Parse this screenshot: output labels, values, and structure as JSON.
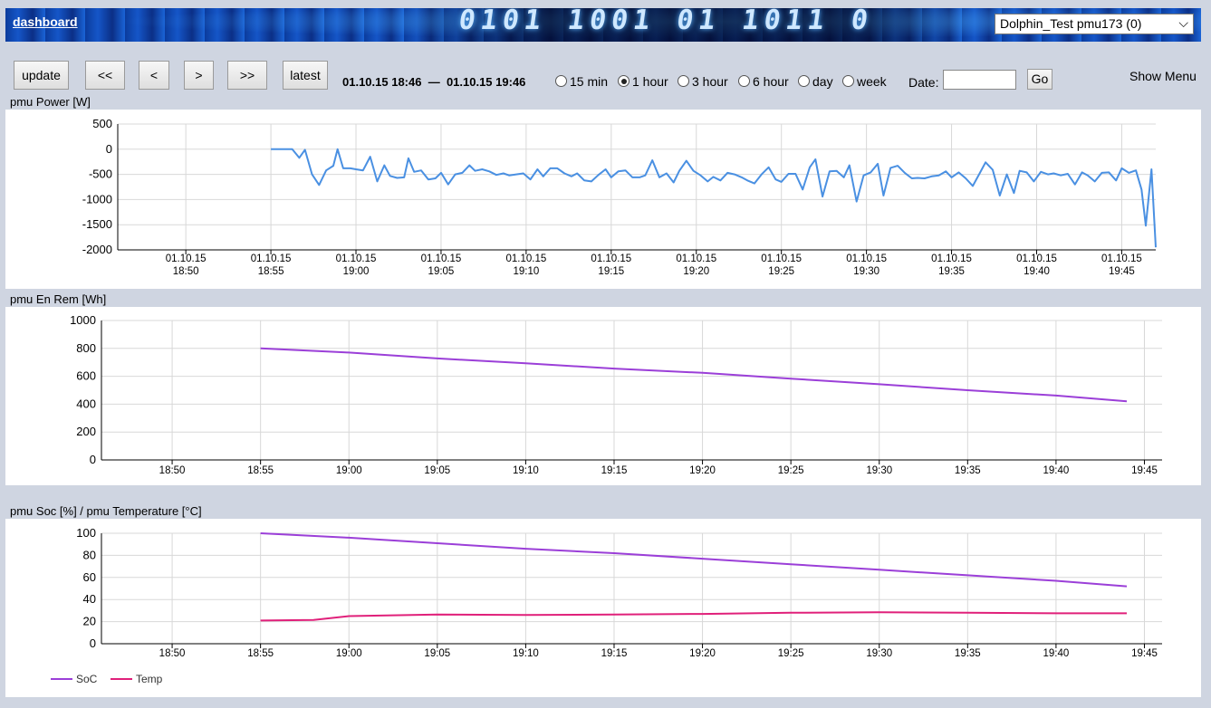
{
  "header": {
    "dashboard_link": "dashboard",
    "banner_digits": "0101 1001 01 1011 0",
    "device_select": "Dolphin_Test pmu173 (0)"
  },
  "toolbar": {
    "update": "update",
    "first": "<<",
    "prev": "<",
    "next": ">",
    "last": ">>",
    "latest": "latest",
    "range_start": "01.10.15 18:46",
    "range_sep": "—",
    "range_end": "01.10.15 19:46",
    "ranges": [
      {
        "label": "15 min",
        "selected": false
      },
      {
        "label": "1 hour",
        "selected": true
      },
      {
        "label": "3 hour",
        "selected": false
      },
      {
        "label": "6 hour",
        "selected": false
      },
      {
        "label": "day",
        "selected": false
      },
      {
        "label": "week",
        "selected": false
      }
    ],
    "date_label": "Date:",
    "date_value": "",
    "go": "Go",
    "show_menu": "Show Menu"
  },
  "chart_data": [
    {
      "type": "line",
      "title": "pmu Power [W]",
      "x_ticks": [
        [
          "01.10.15",
          "18:50"
        ],
        [
          "01.10.15",
          "18:55"
        ],
        [
          "01.10.15",
          "19:00"
        ],
        [
          "01.10.15",
          "19:05"
        ],
        [
          "01.10.15",
          "19:10"
        ],
        [
          "01.10.15",
          "19:15"
        ],
        [
          "01.10.15",
          "19:20"
        ],
        [
          "01.10.15",
          "19:25"
        ],
        [
          "01.10.15",
          "19:30"
        ],
        [
          "01.10.15",
          "19:35"
        ],
        [
          "01.10.15",
          "19:40"
        ],
        [
          "01.10.15",
          "19:45"
        ]
      ],
      "xlim": [
        "18:46",
        "19:47"
      ],
      "ylim": [
        -2000,
        500
      ],
      "y_ticks": [
        500,
        0,
        -500,
        -1000,
        -1500,
        -2000
      ],
      "grid": true,
      "series": [
        {
          "color": "#4a90e2",
          "points": [
            [
              "18:55",
              0
            ],
            [
              "18:55:45",
              0
            ],
            [
              "18:56:15",
              0
            ],
            [
              "18:56:40",
              -170
            ],
            [
              "18:57",
              -10
            ],
            [
              "18:57:25",
              -500
            ],
            [
              "18:57:50",
              -710
            ],
            [
              "18:58:15",
              -420
            ],
            [
              "18:58:40",
              -330
            ],
            [
              "18:58:55",
              0
            ],
            [
              "18:59:15",
              -380
            ],
            [
              "18:59:40",
              -380
            ],
            [
              "19:00",
              -400
            ],
            [
              "19:00:25",
              -420
            ],
            [
              "19:00:50",
              -150
            ],
            [
              "19:01:15",
              -640
            ],
            [
              "19:01:40",
              -320
            ],
            [
              "19:02",
              -530
            ],
            [
              "19:02:25",
              -570
            ],
            [
              "19:02:50",
              -560
            ],
            [
              "19:03:05",
              -180
            ],
            [
              "19:03:25",
              -450
            ],
            [
              "19:03:50",
              -420
            ],
            [
              "19:04:15",
              -600
            ],
            [
              "19:04:40",
              -580
            ],
            [
              "19:05",
              -470
            ],
            [
              "19:05:25",
              -700
            ],
            [
              "19:05:50",
              -500
            ],
            [
              "19:06:15",
              -470
            ],
            [
              "19:06:40",
              -320
            ],
            [
              "19:07",
              -430
            ],
            [
              "19:07:25",
              -400
            ],
            [
              "19:07:50",
              -440
            ],
            [
              "19:08:15",
              -510
            ],
            [
              "19:08:40",
              -480
            ],
            [
              "19:09",
              -520
            ],
            [
              "19:09:25",
              -500
            ],
            [
              "19:09:50",
              -480
            ],
            [
              "19:10:15",
              -600
            ],
            [
              "19:10:40",
              -400
            ],
            [
              "19:11",
              -540
            ],
            [
              "19:11:25",
              -380
            ],
            [
              "19:11:50",
              -380
            ],
            [
              "19:12:15",
              -480
            ],
            [
              "19:12:40",
              -540
            ],
            [
              "19:13",
              -480
            ],
            [
              "19:13:25",
              -620
            ],
            [
              "19:13:50",
              -640
            ],
            [
              "19:14:15",
              -510
            ],
            [
              "19:14:40",
              -400
            ],
            [
              "19:15",
              -560
            ],
            [
              "19:15:25",
              -440
            ],
            [
              "19:15:50",
              -420
            ],
            [
              "19:16:15",
              -560
            ],
            [
              "19:16:40",
              -560
            ],
            [
              "19:17",
              -520
            ],
            [
              "19:17:25",
              -220
            ],
            [
              "19:17:50",
              -560
            ],
            [
              "19:18:15",
              -480
            ],
            [
              "19:18:40",
              -660
            ],
            [
              "19:19",
              -430
            ],
            [
              "19:19:25",
              -230
            ],
            [
              "19:19:50",
              -430
            ],
            [
              "19:20:15",
              -520
            ],
            [
              "19:20:40",
              -640
            ],
            [
              "19:21",
              -550
            ],
            [
              "19:21:25",
              -620
            ],
            [
              "19:21:50",
              -470
            ],
            [
              "19:22:15",
              -500
            ],
            [
              "19:22:40",
              -560
            ],
            [
              "19:23",
              -620
            ],
            [
              "19:23:25",
              -680
            ],
            [
              "19:23:50",
              -500
            ],
            [
              "19:24:15",
              -360
            ],
            [
              "19:24:40",
              -600
            ],
            [
              "19:25",
              -650
            ],
            [
              "19:25:25",
              -490
            ],
            [
              "19:25:50",
              -490
            ],
            [
              "19:26:15",
              -800
            ],
            [
              "19:26:40",
              -360
            ],
            [
              "19:27",
              -200
            ],
            [
              "19:27:25",
              -940
            ],
            [
              "19:27:50",
              -440
            ],
            [
              "19:28:15",
              -430
            ],
            [
              "19:28:40",
              -560
            ],
            [
              "19:29",
              -320
            ],
            [
              "19:29:25",
              -1040
            ],
            [
              "19:29:50",
              -520
            ],
            [
              "19:30:15",
              -460
            ],
            [
              "19:30:40",
              -290
            ],
            [
              "19:31",
              -920
            ],
            [
              "19:31:25",
              -370
            ],
            [
              "19:31:50",
              -330
            ],
            [
              "19:32:15",
              -470
            ],
            [
              "19:32:40",
              -580
            ],
            [
              "19:33",
              -570
            ],
            [
              "19:33:25",
              -580
            ],
            [
              "19:33:50",
              -540
            ],
            [
              "19:34:15",
              -520
            ],
            [
              "19:34:40",
              -440
            ],
            [
              "19:35",
              -560
            ],
            [
              "19:35:25",
              -460
            ],
            [
              "19:35:50",
              -580
            ],
            [
              "19:36:15",
              -730
            ],
            [
              "19:36:40",
              -470
            ],
            [
              "19:37",
              -260
            ],
            [
              "19:37:25",
              -410
            ],
            [
              "19:37:50",
              -920
            ],
            [
              "19:38:15",
              -500
            ],
            [
              "19:38:40",
              -870
            ],
            [
              "19:39",
              -430
            ],
            [
              "19:39:25",
              -460
            ],
            [
              "19:39:50",
              -640
            ],
            [
              "19:40:15",
              -450
            ],
            [
              "19:40:40",
              -500
            ],
            [
              "19:41",
              -480
            ],
            [
              "19:41:25",
              -520
            ],
            [
              "19:41:50",
              -490
            ],
            [
              "19:42:15",
              -700
            ],
            [
              "19:42:40",
              -460
            ],
            [
              "19:43",
              -520
            ],
            [
              "19:43:25",
              -640
            ],
            [
              "19:43:50",
              -470
            ],
            [
              "19:44:15",
              -460
            ],
            [
              "19:44:40",
              -620
            ],
            [
              "19:45",
              -380
            ],
            [
              "19:45:25",
              -470
            ],
            [
              "19:45:50",
              -420
            ],
            [
              "19:46:10",
              -800
            ],
            [
              "19:46:25",
              -1520
            ],
            [
              "19:46:45",
              -400
            ],
            [
              "19:47",
              -1950
            ]
          ]
        }
      ]
    },
    {
      "type": "line",
      "title": "pmu En Rem [Wh]",
      "x_ticks": [
        [
          "",
          "18:50"
        ],
        [
          "",
          "18:55"
        ],
        [
          "",
          "19:00"
        ],
        [
          "",
          "19:05"
        ],
        [
          "",
          "19:10"
        ],
        [
          "",
          "19:15"
        ],
        [
          "",
          "19:20"
        ],
        [
          "",
          "19:25"
        ],
        [
          "",
          "19:30"
        ],
        [
          "",
          "19:35"
        ],
        [
          "",
          "19:40"
        ],
        [
          "",
          "19:45"
        ]
      ],
      "xlim": [
        "18:46",
        "19:46"
      ],
      "ylim": [
        0,
        1000
      ],
      "y_ticks": [
        1000,
        800,
        600,
        400,
        200,
        0
      ],
      "grid": true,
      "series": [
        {
          "color": "#9b3fd8",
          "points": [
            [
              "18:55",
              800
            ],
            [
              "19:00",
              770
            ],
            [
              "19:05",
              728
            ],
            [
              "19:10",
              693
            ],
            [
              "19:15",
              655
            ],
            [
              "19:20",
              625
            ],
            [
              "19:25",
              583
            ],
            [
              "19:30",
              543
            ],
            [
              "19:35",
              500
            ],
            [
              "19:40",
              462
            ],
            [
              "19:44",
              420
            ]
          ]
        }
      ]
    },
    {
      "type": "line",
      "title": "pmu Soc [%] / pmu Temperature [°C]",
      "x_ticks": [
        [
          "",
          "18:50"
        ],
        [
          "",
          "18:55"
        ],
        [
          "",
          "19:00"
        ],
        [
          "",
          "19:05"
        ],
        [
          "",
          "19:10"
        ],
        [
          "",
          "19:15"
        ],
        [
          "",
          "19:20"
        ],
        [
          "",
          "19:25"
        ],
        [
          "",
          "19:30"
        ],
        [
          "",
          "19:35"
        ],
        [
          "",
          "19:40"
        ],
        [
          "",
          "19:45"
        ]
      ],
      "xlim": [
        "18:46",
        "19:46"
      ],
      "ylim": [
        0,
        100
      ],
      "y_ticks": [
        100,
        80,
        60,
        40,
        20,
        0
      ],
      "grid": true,
      "legend_position": "bottom-left",
      "series": [
        {
          "name": "SoC",
          "color": "#9b3fd8",
          "points": [
            [
              "18:55",
              100
            ],
            [
              "19:00",
              96
            ],
            [
              "19:05",
              91
            ],
            [
              "19:10",
              86
            ],
            [
              "19:15",
              82
            ],
            [
              "19:20",
              77
            ],
            [
              "19:25",
              72
            ],
            [
              "19:30",
              67
            ],
            [
              "19:35",
              62
            ],
            [
              "19:40",
              57
            ],
            [
              "19:44",
              52
            ]
          ]
        },
        {
          "name": "Temp",
          "color": "#e0207a",
          "points": [
            [
              "18:55",
              21
            ],
            [
              "18:58",
              21.5
            ],
            [
              "19:00",
              25
            ],
            [
              "19:05",
              26.5
            ],
            [
              "19:10",
              26
            ],
            [
              "19:15",
              26.5
            ],
            [
              "19:20",
              27
            ],
            [
              "19:25",
              28
            ],
            [
              "19:30",
              28.5
            ],
            [
              "19:35",
              28
            ],
            [
              "19:40",
              27.5
            ],
            [
              "19:44",
              27.5
            ]
          ]
        }
      ]
    }
  ]
}
